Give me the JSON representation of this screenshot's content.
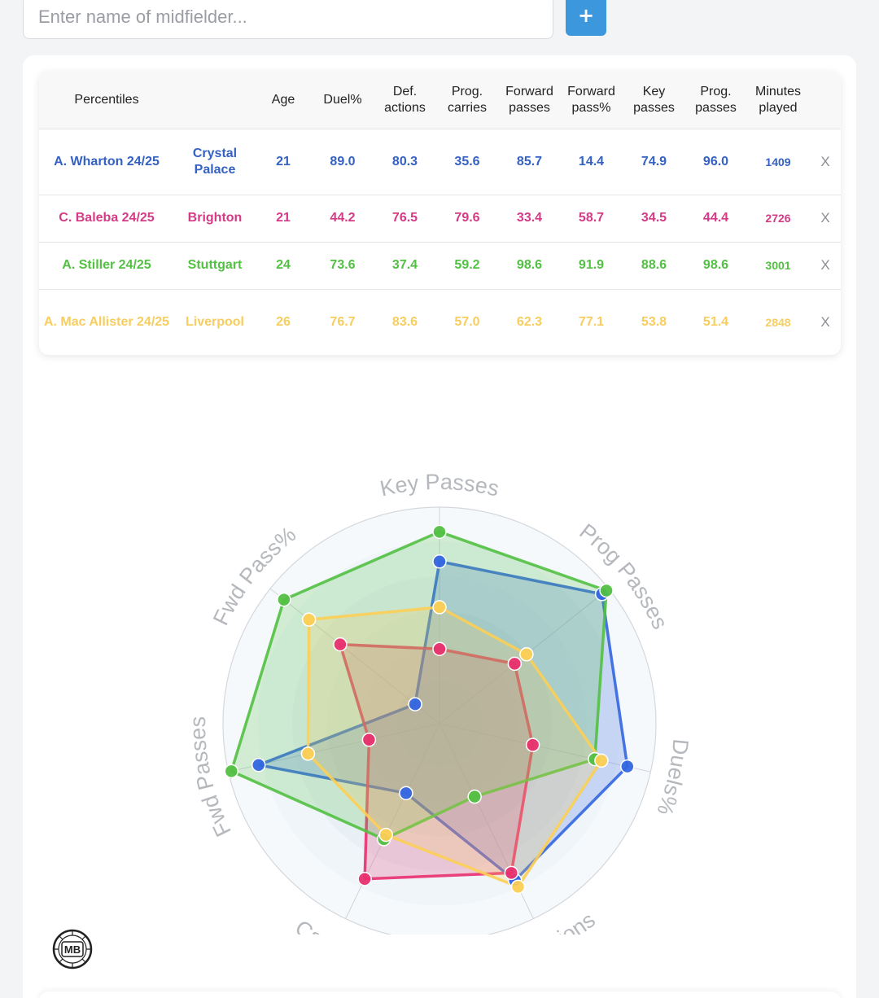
{
  "search": {
    "placeholder": "Enter name of midfielder...",
    "add_label": "+"
  },
  "table": {
    "headers": {
      "percentiles": "Percentiles",
      "age": "Age",
      "duel": "Duel%",
      "def": "Def. actions",
      "carries": "Prog. carries",
      "fwd": "Forward passes",
      "fwdpct": "Forward pass%",
      "key": "Key passes",
      "prog": "Prog. passes",
      "minutes": "Minutes played"
    },
    "rows": [
      {
        "player": "A. Wharton 24/25",
        "team": "Crystal Palace",
        "age": "21",
        "duel": "89.0",
        "def": "80.3",
        "carries": "35.6",
        "fwd": "85.7",
        "fwdpct": "14.4",
        "key": "74.9",
        "prog": "96.0",
        "minutes": "1409",
        "remove": "X",
        "color": "#3461c2"
      },
      {
        "player": "C. Baleba 24/25",
        "team": "Brighton",
        "age": "21",
        "duel": "44.2",
        "def": "76.5",
        "carries": "79.6",
        "fwd": "33.4",
        "fwdpct": "58.7",
        "key": "34.5",
        "prog": "44.4",
        "minutes": "2726",
        "remove": "X",
        "color": "#d53a86"
      },
      {
        "player": "A. Stiller 24/25",
        "team": "Stuttgart",
        "age": "24",
        "duel": "73.6",
        "def": "37.4",
        "carries": "59.2",
        "fwd": "98.6",
        "fwdpct": "91.9",
        "key": "88.6",
        "prog": "98.6",
        "minutes": "3001",
        "remove": "X",
        "color": "#52c043"
      },
      {
        "player": "A. Mac Allister 24/25",
        "team": "Liverpool",
        "age": "26",
        "duel": "76.7",
        "def": "83.6",
        "carries": "57.0",
        "fwd": "62.3",
        "fwdpct": "77.1",
        "key": "53.8",
        "prog": "51.4",
        "minutes": "2848",
        "remove": "X",
        "color": "#f6cd5e"
      }
    ]
  },
  "chart_data": {
    "type": "radar",
    "axes": [
      "Key Passes",
      "Prog Passes",
      "Duels%",
      "Def Actions",
      "Carrying",
      "Fwd Passes",
      "Fwd Pass%"
    ],
    "range": [
      0,
      100
    ],
    "series": [
      {
        "name": "A. Wharton 24/25",
        "color": "#3366e0",
        "values": [
          74.9,
          96.0,
          89.0,
          80.3,
          35.6,
          85.7,
          14.4
        ]
      },
      {
        "name": "C. Baleba 24/25",
        "color": "#e8306f",
        "values": [
          34.5,
          44.4,
          44.2,
          76.5,
          79.6,
          33.4,
          58.7
        ]
      },
      {
        "name": "A. Stiller 24/25",
        "color": "#52c043",
        "values": [
          88.6,
          98.6,
          73.6,
          37.4,
          59.2,
          98.6,
          91.9
        ]
      },
      {
        "name": "A. Mac Allister 24/25",
        "color": "#fccf55",
        "values": [
          53.8,
          51.4,
          76.7,
          83.6,
          57.0,
          62.3,
          77.1
        ]
      }
    ]
  },
  "logo": {
    "text": "MB"
  }
}
